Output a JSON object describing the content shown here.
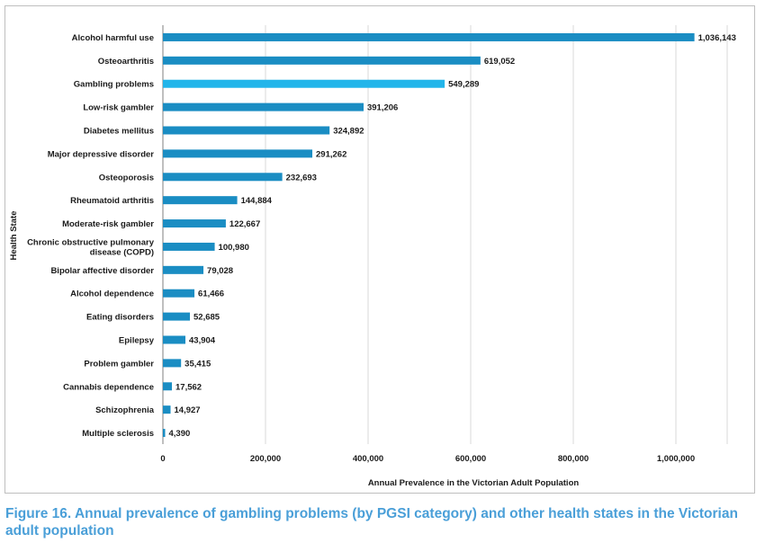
{
  "chart_data": {
    "type": "bar",
    "orientation": "horizontal",
    "ylabel": "Health State",
    "xlabel": "Annual Prevalence in the Victorian Adult Population",
    "xlim": [
      0,
      1100000
    ],
    "xticks": [
      0,
      200000,
      400000,
      600000,
      800000,
      1000000
    ],
    "xtick_labels": [
      "0",
      "200,000",
      "400,000",
      "600,000",
      "800,000",
      "1,000,000"
    ],
    "grid": "vertical",
    "legend": "none",
    "categories": [
      "Alcohol harmful use",
      "Osteoarthritis",
      "Gambling problems",
      "Low-risk gambler",
      "Diabetes mellitus",
      "Major depressive disorder",
      "Osteoporosis",
      "Rheumatoid arthritis",
      "Moderate-risk gambler",
      "Chronic obstructive pulmonary disease (COPD)",
      "Bipolar affective disorder",
      "Alcohol dependence",
      "Eating disorders",
      "Epilepsy",
      "Problem gambler",
      "Cannabis dependence",
      "Schizophrenia",
      "Multiple sclerosis"
    ],
    "category_label_lines": [
      [
        "Alcohol harmful use"
      ],
      [
        "Osteoarthritis"
      ],
      [
        "Gambling problems"
      ],
      [
        "Low-risk gambler"
      ],
      [
        "Diabetes mellitus"
      ],
      [
        "Major depressive disorder"
      ],
      [
        "Osteoporosis"
      ],
      [
        "Rheumatoid arthritis"
      ],
      [
        "Moderate-risk gambler"
      ],
      [
        "Chronic obstructive pulmonary",
        "disease (COPD)"
      ],
      [
        "Bipolar affective disorder"
      ],
      [
        "Alcohol dependence"
      ],
      [
        "Eating disorders"
      ],
      [
        "Epilepsy"
      ],
      [
        "Problem gambler"
      ],
      [
        "Cannabis dependence"
      ],
      [
        "Schizophrenia"
      ],
      [
        "Multiple sclerosis"
      ]
    ],
    "values": [
      1036143,
      619052,
      549289,
      391206,
      324892,
      291262,
      232693,
      144884,
      122667,
      100980,
      79028,
      61466,
      52685,
      43904,
      35415,
      17562,
      14927,
      4390
    ],
    "value_labels": [
      "1,036,143",
      "619,052",
      "549,289",
      "391,206",
      "324,892",
      "291,262",
      "232,693",
      "144,884",
      "122,667",
      "100,980",
      "79,028",
      "61,466",
      "52,685",
      "43,904",
      "35,415",
      "17,562",
      "14,927",
      "4,390"
    ],
    "colors": {
      "default": "#1a8dc3",
      "highlight": "#22b5ea",
      "highlight_category": "Gambling problems",
      "grid": "#d9d9d9",
      "axis": "#7f7f7f"
    }
  },
  "caption": "Figure 16. Annual prevalence of gambling problems (by PGSI category) and other health states in the Victorian adult population"
}
